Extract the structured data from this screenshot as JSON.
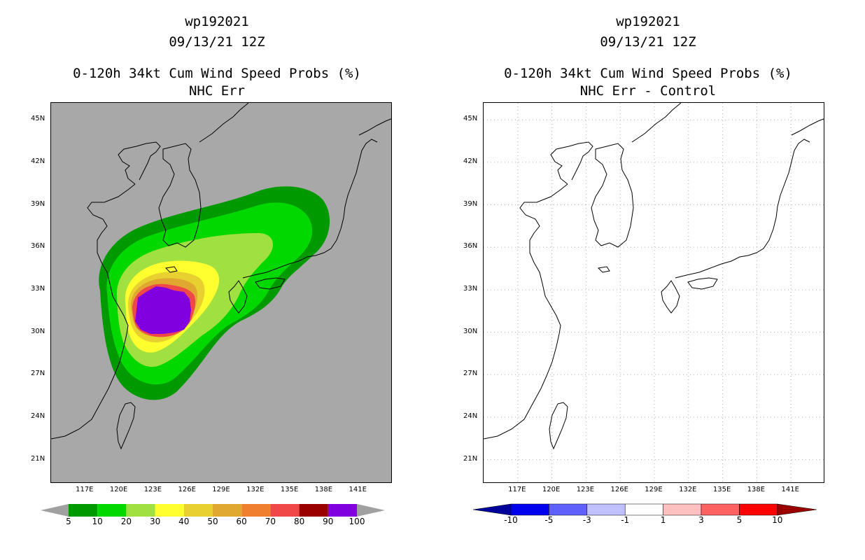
{
  "left_panel": {
    "storm_id": "wp192021",
    "datetime": "09/13/21 12Z",
    "product": "0-120h 34kt Cum Wind Speed Probs (%)",
    "subtitle": "NHC Err"
  },
  "right_panel": {
    "storm_id": "wp192021",
    "datetime": "09/13/21 12Z",
    "product": "0-120h 34kt Cum Wind Speed Probs (%)",
    "subtitle": "NHC Err - Control"
  },
  "axes": {
    "lon_range": [
      114,
      144
    ],
    "lat_range": [
      19.3,
      46.2
    ],
    "lat_ticks": [
      "45N",
      "42N",
      "39N",
      "36N",
      "33N",
      "30N",
      "27N",
      "24N",
      "21N"
    ],
    "lat_values": [
      45,
      42,
      39,
      36,
      33,
      30,
      27,
      24,
      21
    ],
    "lon_ticks": [
      "117E",
      "120E",
      "123E",
      "126E",
      "129E",
      "132E",
      "135E",
      "138E",
      "141E"
    ],
    "lon_values": [
      117,
      120,
      123,
      126,
      129,
      132,
      135,
      138,
      141
    ]
  },
  "left_colorbar": {
    "labels": [
      "5",
      "10",
      "20",
      "30",
      "40",
      "50",
      "60",
      "70",
      "80",
      "90",
      "100"
    ],
    "colors": [
      "#009a00",
      "#00d800",
      "#a0e040",
      "#ffff30",
      "#e8d030",
      "#e0a830",
      "#f08030",
      "#f04848",
      "#9a0000",
      "#8000e0"
    ],
    "end_color": "#a0a0a0"
  },
  "right_colorbar": {
    "labels": [
      "-10",
      "-5",
      "-3",
      "-1",
      "1",
      "3",
      "5",
      "10"
    ],
    "colors": [
      "#0000f0",
      "#6060ff",
      "#c0c0ff",
      "#ffffff",
      "#ffc0c0",
      "#ff6060",
      "#ff0000"
    ],
    "low_color": "#00009a",
    "high_color": "#9a0000"
  },
  "colors": {
    "map_background": "#a8a8a8",
    "coastline": "#000000"
  }
}
